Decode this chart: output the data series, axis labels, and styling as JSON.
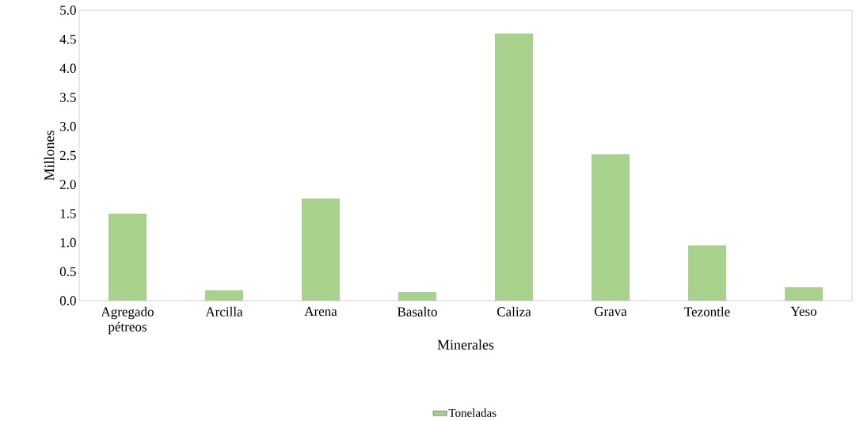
{
  "chart_data": {
    "type": "bar",
    "xlabel": "Minerales",
    "ylabel": "Millones",
    "categories": [
      "Agregado pétreos",
      "Arcilla",
      "Arena",
      "Basalto",
      "Caliza",
      "Grava",
      "Tezontle",
      "Yeso"
    ],
    "series": [
      {
        "name": "Toneladas",
        "color": "#a9d18e",
        "values": [
          1.5,
          0.18,
          1.76,
          0.15,
          4.6,
          2.52,
          0.95,
          0.23
        ]
      }
    ],
    "ylim": [
      0,
      5
    ],
    "yticks": [
      {
        "value": 0,
        "label": "0.0"
      },
      {
        "value": 0.5,
        "label": "0.5"
      },
      {
        "value": 1,
        "label": "1.0"
      },
      {
        "value": 1.5,
        "label": "1.5"
      },
      {
        "value": 2,
        "label": "2.0"
      },
      {
        "value": 2.5,
        "label": "2.5"
      },
      {
        "value": 3,
        "label": "3.0"
      },
      {
        "value": 3.5,
        "label": "3.5"
      },
      {
        "value": 4,
        "label": "4.0"
      },
      {
        "value": 4.5,
        "label": "4.5"
      },
      {
        "value": 5,
        "label": "5.0"
      }
    ],
    "grid": false,
    "legend": "bottom"
  }
}
